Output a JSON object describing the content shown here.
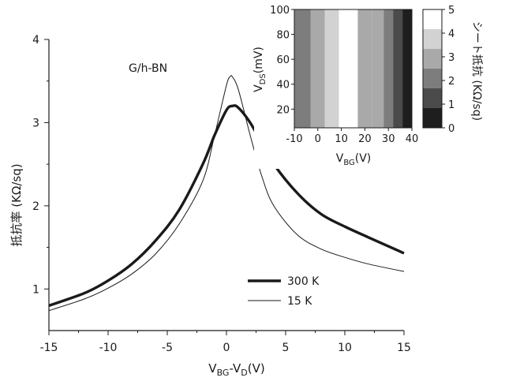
{
  "chart_data": [
    {
      "type": "line",
      "annotation": "G/h-BN",
      "xlabel": {
        "base": "V",
        "sub1": "BG",
        "mid": "-V",
        "sub2": "D",
        "unit": "(V)"
      },
      "ylabel": "抵抗率 (KΩ/sq)",
      "xlim": [
        -15,
        15
      ],
      "ylim": [
        0.5,
        4
      ],
      "xticks": [
        -15,
        -10,
        -5,
        0,
        5,
        10,
        15
      ],
      "yticks": [
        1,
        2,
        3,
        4
      ],
      "grid": false,
      "legend_position": "lower-right",
      "series": [
        {
          "name": "300 K",
          "color": "#1a1a1a",
          "points": [
            [
              -15,
              0.8
            ],
            [
              -12,
              0.95
            ],
            [
              -10,
              1.1
            ],
            [
              -8,
              1.3
            ],
            [
              -6,
              1.58
            ],
            [
              -4,
              1.95
            ],
            [
              -2,
              2.5
            ],
            [
              -1,
              2.85
            ],
            [
              0,
              3.15
            ],
            [
              0.5,
              3.2
            ],
            [
              1,
              3.18
            ],
            [
              2,
              3.0
            ],
            [
              3,
              2.75
            ],
            [
              4,
              2.5
            ],
            [
              6,
              2.15
            ],
            [
              8,
              1.9
            ],
            [
              10,
              1.75
            ],
            [
              12,
              1.62
            ],
            [
              15,
              1.43
            ]
          ]
        },
        {
          "name": "15 K",
          "color": "#1a1a1a",
          "points": [
            [
              -15,
              0.74
            ],
            [
              -12,
              0.88
            ],
            [
              -10,
              1.01
            ],
            [
              -8,
              1.18
            ],
            [
              -6,
              1.42
            ],
            [
              -4,
              1.78
            ],
            [
              -2,
              2.3
            ],
            [
              -1,
              2.85
            ],
            [
              0,
              3.45
            ],
            [
              0.3,
              3.55
            ],
            [
              0.5,
              3.55
            ],
            [
              1,
              3.4
            ],
            [
              2,
              2.85
            ],
            [
              3,
              2.35
            ],
            [
              4,
              2.0
            ],
            [
              6,
              1.65
            ],
            [
              8,
              1.48
            ],
            [
              10,
              1.38
            ],
            [
              12,
              1.3
            ],
            [
              15,
              1.21
            ]
          ]
        }
      ]
    },
    {
      "type": "heatmap",
      "xlabel": {
        "base": "V",
        "sub": "BG",
        "unit": "(V)"
      },
      "ylabel": {
        "base": "V",
        "sub": "DS",
        "unit": "(mV)"
      },
      "xlim": [
        -10,
        40
      ],
      "ylim": [
        5,
        100
      ],
      "xticks": [
        -10,
        0,
        10,
        20,
        30,
        40
      ],
      "yticks": [
        20,
        40,
        60,
        80,
        100
      ],
      "columns_x": [
        [
          -10,
          -3
        ],
        [
          -3,
          3
        ],
        [
          3,
          9
        ],
        [
          9,
          17
        ],
        [
          17,
          23
        ],
        [
          23,
          28
        ],
        [
          28,
          32
        ],
        [
          32,
          36
        ],
        [
          36,
          40
        ]
      ],
      "column_values": [
        2.2,
        3.0,
        3.7,
        5.0,
        3.3,
        2.6,
        1.6,
        1.0,
        0.0
      ],
      "colorbar": {
        "label": "シート抵抗 (KΩ/sq)",
        "range": [
          0,
          5
        ],
        "ticks": [
          0,
          1,
          2,
          3,
          4,
          5
        ],
        "colors": [
          "#1e1e1e",
          "#4b4b4b",
          "#7d7d7d",
          "#a9a9a9",
          "#d2d2d2",
          "#ffffff"
        ]
      }
    }
  ]
}
